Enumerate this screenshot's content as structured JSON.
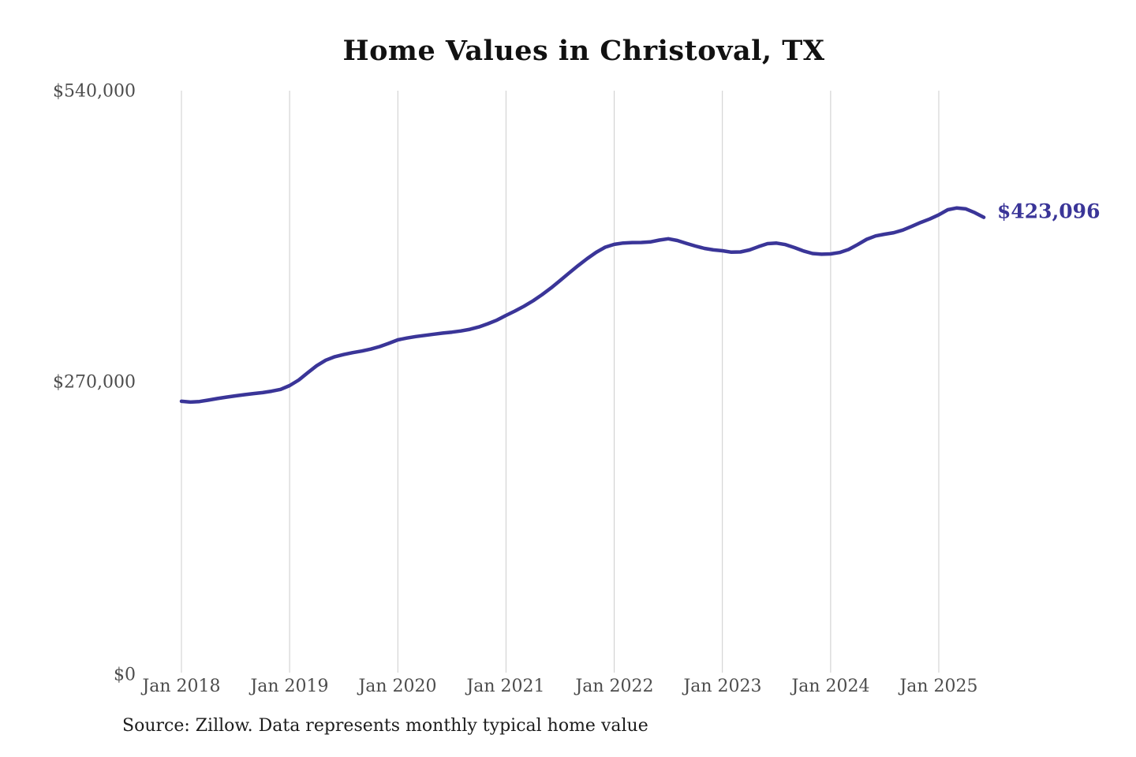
{
  "title": "Home Values in Christoval, TX",
  "source_note": "Source: Zillow. Data represents monthly typical home value",
  "colors": {
    "line": "#3a3598",
    "end_label": "#3a3598",
    "grid": "#cccccc",
    "tick_label": "#4d4d4d",
    "title": "#111111",
    "source": "#1c1c1c",
    "background": "#ffffff"
  },
  "chart_data": {
    "type": "line",
    "title": "Home Values in Christoval, TX",
    "series_name": "Monthly typical home value",
    "frequency": "monthly",
    "x_start_month": "Jan 2018",
    "x_end_month": "Jun 2025",
    "x_tick_labels": [
      "Jan 2018",
      "Jan 2019",
      "Jan 2020",
      "Jan 2021",
      "Jan 2022",
      "Jan 2023",
      "Jan 2024",
      "Jan 2025"
    ],
    "y_tick_labels": [
      "$0",
      "$270,000",
      "$540,000"
    ],
    "ylim": [
      0,
      540000
    ],
    "grid": "vertical-only",
    "legend": "none",
    "end_label": "$423,096",
    "end_value": 423096,
    "values": [
      252100,
      251400,
      251900,
      253200,
      254700,
      256000,
      257200,
      258300,
      259300,
      260200,
      261500,
      263200,
      266700,
      271800,
      278600,
      285200,
      290300,
      293500,
      295600,
      297300,
      298800,
      300600,
      303000,
      306000,
      309200,
      310900,
      312300,
      313400,
      314500,
      315500,
      316400,
      317500,
      319000,
      321200,
      324200,
      327600,
      331900,
      336000,
      340500,
      345500,
      351200,
      357500,
      364300,
      371300,
      378200,
      384700,
      390500,
      395300,
      397900,
      399200,
      399600,
      399700,
      400200,
      401900,
      403100,
      401500,
      398900,
      396400,
      394200,
      392800,
      392000,
      390700,
      390900,
      392700,
      395800,
      398600,
      399100,
      397700,
      394900,
      391800,
      389400,
      388800,
      389100,
      390400,
      393200,
      397700,
      402600,
      405800,
      407400,
      408800,
      411200,
      414600,
      418300,
      421500,
      425400,
      430100,
      431800,
      430900,
      427400,
      423096
    ]
  }
}
